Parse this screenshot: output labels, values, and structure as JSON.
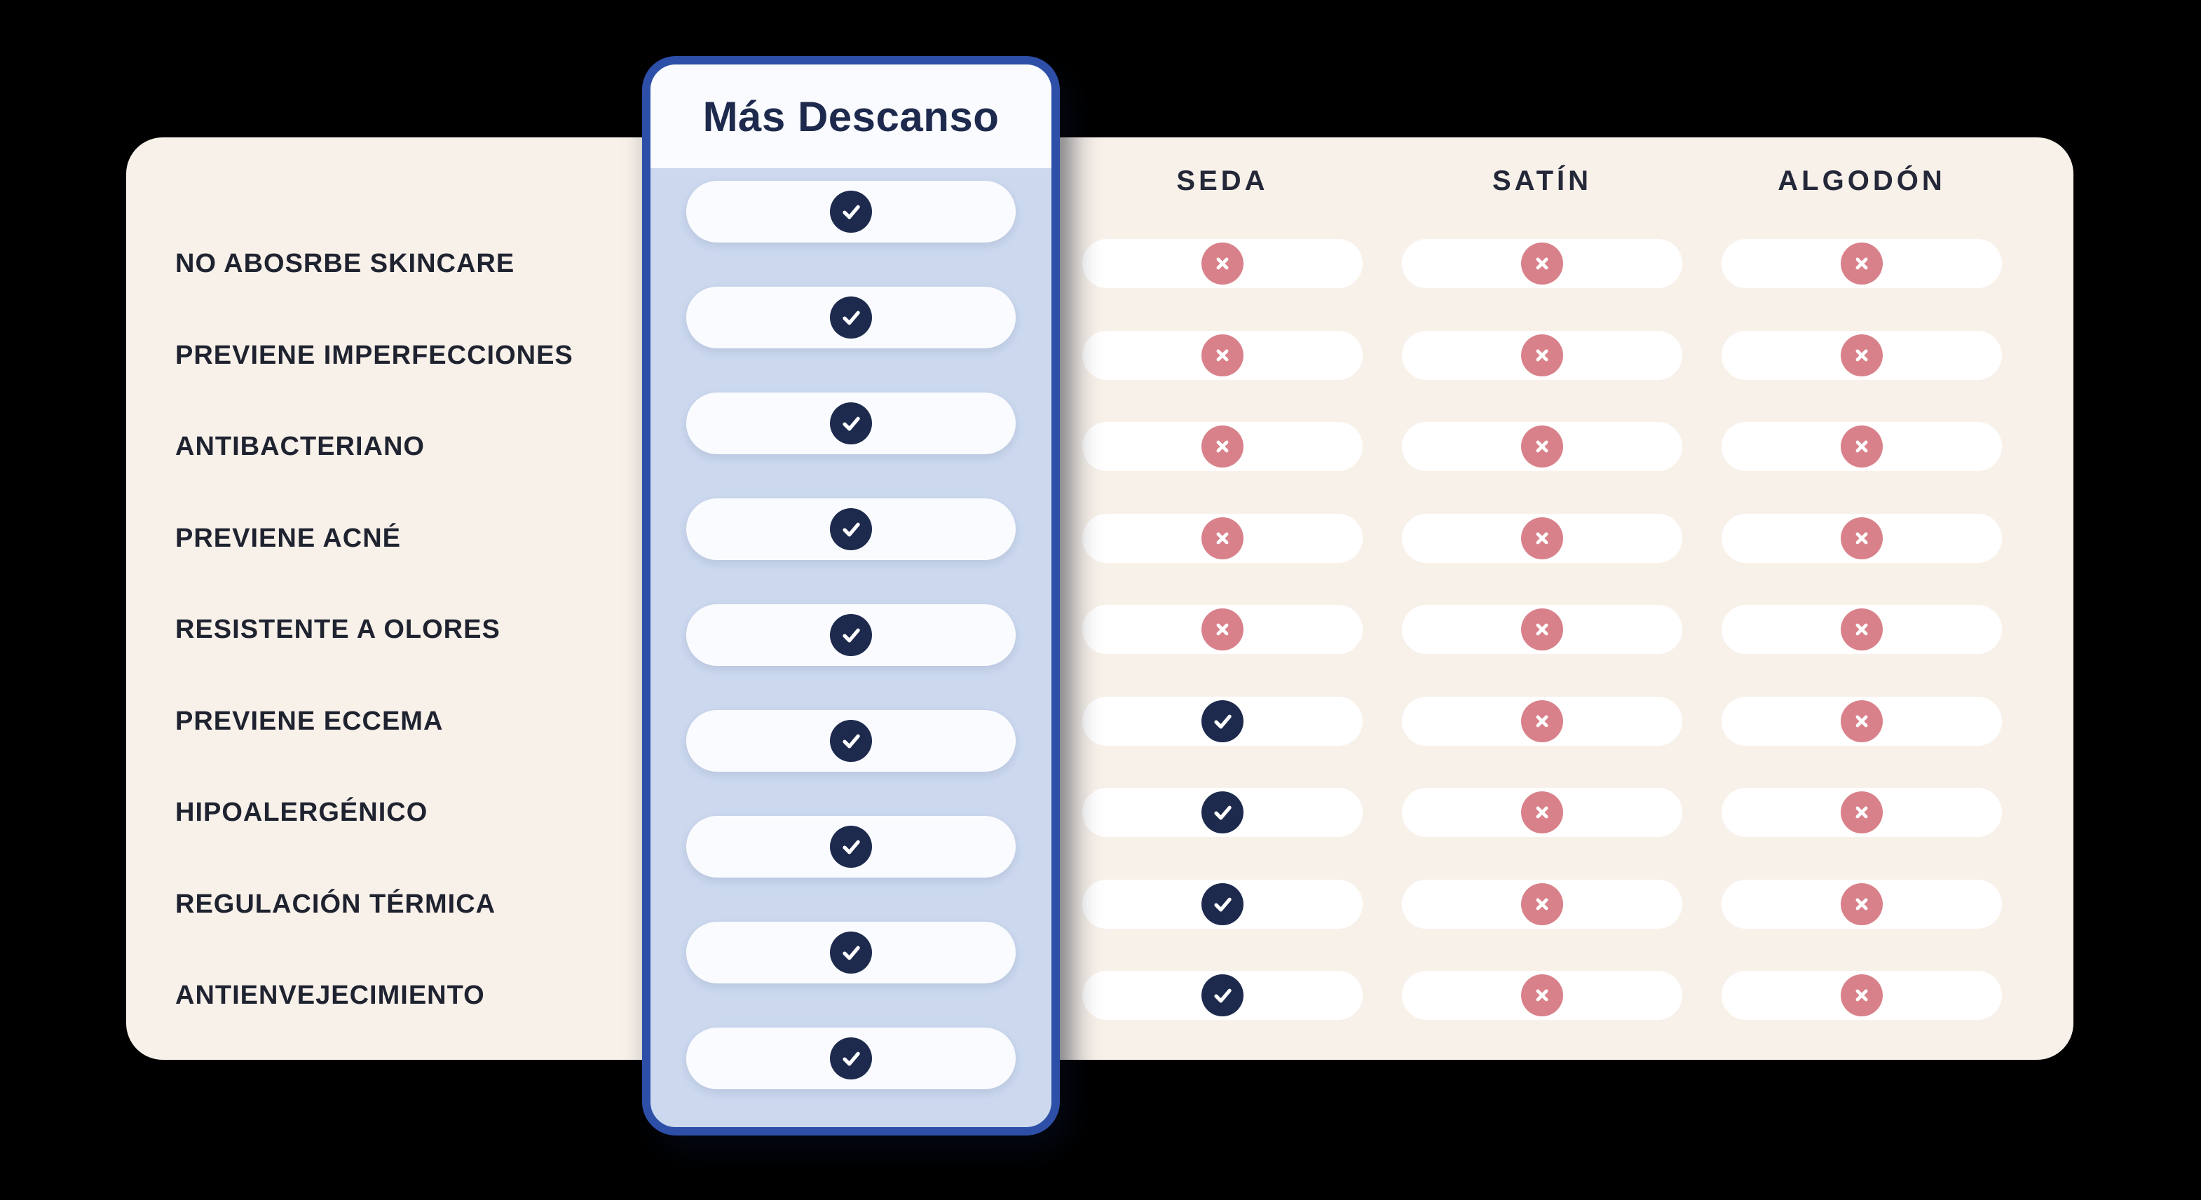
{
  "canvas": {
    "background": "#000000"
  },
  "card": {
    "background": "#f8f1ea"
  },
  "brand": {
    "name": "Más Descanso",
    "panel_background": "#cbd8ee",
    "panel_border": "#2d4fa8",
    "header_background": "#fafbfe",
    "pill_background": "#fafbfe",
    "all_features_included": true
  },
  "colors": {
    "yes": "#1d2a4d",
    "no": "#d9818a",
    "cell_pill": "#ffffff",
    "label_text": "#1f2330",
    "header_text": "#242838"
  },
  "icons": {
    "yes": "check-icon",
    "no": "x-icon"
  },
  "chart_data": {
    "type": "table",
    "title": "",
    "columns": [
      "Más Descanso",
      "SEDA",
      "SATÍN",
      "ALGODÓN"
    ],
    "rows": [
      {
        "feature": "NO ABOSRBE SKINCARE",
        "values": [
          true,
          false,
          false,
          false
        ]
      },
      {
        "feature": "PREVIENE IMPERFECCIONES",
        "values": [
          true,
          false,
          false,
          false
        ]
      },
      {
        "feature": "ANTIBACTERIANO",
        "values": [
          true,
          false,
          false,
          false
        ]
      },
      {
        "feature": "PREVIENE ACNÉ",
        "values": [
          true,
          false,
          false,
          false
        ]
      },
      {
        "feature": "RESISTENTE A OLORES",
        "values": [
          true,
          false,
          false,
          false
        ]
      },
      {
        "feature": "PREVIENE ECCEMA",
        "values": [
          true,
          true,
          false,
          false
        ]
      },
      {
        "feature": "HIPOALERGÉNICO",
        "values": [
          true,
          true,
          false,
          false
        ]
      },
      {
        "feature": "REGULACIÓN TÉRMICA",
        "values": [
          true,
          true,
          false,
          false
        ]
      },
      {
        "feature": "ANTIENVEJECIMIENTO",
        "values": [
          true,
          true,
          false,
          false
        ]
      }
    ]
  }
}
